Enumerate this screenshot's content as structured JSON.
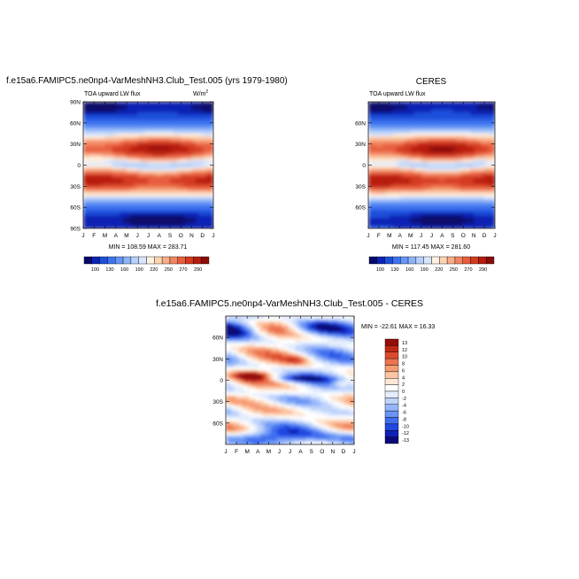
{
  "chart_data": [
    {
      "type": "heatmap",
      "title": "f.e15a6.FAMIPC5.ne0np4-VarMeshNH3.Club_Test.005 (yrs 1979-1980)",
      "subtitle_left": "TOA upward LW flux",
      "units": "W/m",
      "units_sup": "2",
      "stats": "MIN = 108.59  MAX = 283.71",
      "x_ticks": [
        "J",
        "F",
        "M",
        "A",
        "M",
        "J",
        "J",
        "A",
        "S",
        "O",
        "N",
        "D",
        "J"
      ],
      "y_ticks": [
        "90N",
        "60N",
        "30N",
        "0",
        "30S",
        "60S",
        "90S"
      ],
      "colorbar_ticks": [
        "100",
        "130",
        "160",
        "190",
        "220",
        "250",
        "270",
        "290"
      ]
    },
    {
      "type": "heatmap",
      "title": "CERES",
      "subtitle_left": "TOA upward LW flux",
      "stats": "MIN = 117.45  MAX = 281.60",
      "x_ticks": [
        "J",
        "F",
        "M",
        "A",
        "M",
        "J",
        "J",
        "A",
        "S",
        "O",
        "N",
        "D",
        "J"
      ],
      "y_ticks": [
        "60N",
        "30N",
        "0",
        "30S",
        "60S"
      ],
      "colorbar_ticks": [
        "100",
        "130",
        "160",
        "190",
        "220",
        "250",
        "270",
        "290"
      ]
    },
    {
      "type": "heatmap",
      "title": "f.e15a6.FAMIPC5.ne0np4-VarMeshNH3.Club_Test.005 - CERES",
      "stats": "MIN = -22.61  MAX =  16.33",
      "x_ticks": [
        "J",
        "F",
        "M",
        "A",
        "M",
        "J",
        "J",
        "A",
        "S",
        "O",
        "N",
        "D",
        "J"
      ],
      "y_ticks": [
        "60N",
        "30N",
        "0",
        "30S",
        "60S"
      ],
      "colorbar_ticks": [
        "13",
        "12",
        "10",
        "8",
        "6",
        "4",
        "2",
        "0",
        "-2",
        "-4",
        "-6",
        "-8",
        "-10",
        "-12",
        "-13"
      ]
    }
  ],
  "colors": {
    "flux_scale": [
      "#08086b",
      "#0b24b4",
      "#1e4fdc",
      "#3d73f0",
      "#6595f5",
      "#8db4f8",
      "#b5d0fb",
      "#d8e6fd",
      "#fff2e2",
      "#fdd4b4",
      "#f9ad86",
      "#f28561",
      "#e85e3d",
      "#d43a20",
      "#b71d0e",
      "#8a0d08"
    ],
    "diff_scale": [
      "#0a0a78",
      "#1020b8",
      "#2246e0",
      "#3f6ef0",
      "#6a94f5",
      "#94b6f9",
      "#bfd3fb",
      "#e4edfd",
      "#ffffff",
      "#fde6d4",
      "#fbc4a2",
      "#f69c74",
      "#ec7350",
      "#dc4a2c",
      "#c02815",
      "#950c08"
    ]
  }
}
